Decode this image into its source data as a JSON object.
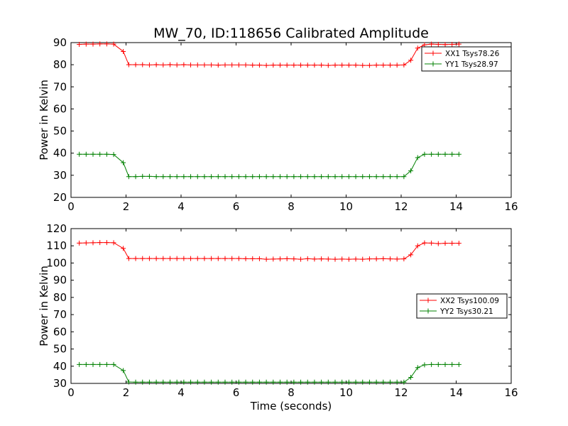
{
  "figure": {
    "title": "MW_70, ID:118656 Calibrated Amplitude"
  },
  "chart_data": [
    {
      "type": "line",
      "title": "MW_70, ID:118656 Calibrated Amplitude",
      "xlabel": "",
      "ylabel": "Power in Kelvin",
      "xlim": [
        0,
        16
      ],
      "ylim": [
        20,
        90
      ],
      "xticks": [
        0,
        2,
        4,
        6,
        8,
        10,
        12,
        14,
        16
      ],
      "yticks": [
        20,
        30,
        40,
        50,
        60,
        70,
        80,
        90
      ],
      "grid": false,
      "legend_position": "top-right",
      "x": [
        0.3,
        0.55,
        0.8,
        1.05,
        1.3,
        1.55,
        1.9,
        2.1,
        2.35,
        2.6,
        2.85,
        3.1,
        3.35,
        3.6,
        3.85,
        4.1,
        4.35,
        4.6,
        4.85,
        5.1,
        5.35,
        5.6,
        5.85,
        6.1,
        6.35,
        6.6,
        6.85,
        7.1,
        7.35,
        7.6,
        7.85,
        8.1,
        8.35,
        8.6,
        8.85,
        9.1,
        9.35,
        9.6,
        9.85,
        10.1,
        10.35,
        10.6,
        10.85,
        11.1,
        11.35,
        11.6,
        11.85,
        12.1,
        12.35,
        12.6,
        12.85,
        13.1,
        13.35,
        13.6,
        13.85,
        14.1
      ],
      "series": [
        {
          "name": "XX1 Tsys78.26",
          "color": "#ff0000",
          "values": [
            89.2,
            89.3,
            89.3,
            89.4,
            89.4,
            89.3,
            86.0,
            80.0,
            80.0,
            80.0,
            79.9,
            80.0,
            79.9,
            80.0,
            79.9,
            80.0,
            79.9,
            79.9,
            79.9,
            79.9,
            79.8,
            79.9,
            79.9,
            79.9,
            79.9,
            79.8,
            79.8,
            79.7,
            79.8,
            79.8,
            79.8,
            79.8,
            79.8,
            79.8,
            79.8,
            79.8,
            79.7,
            79.8,
            79.8,
            79.8,
            79.8,
            79.7,
            79.7,
            79.8,
            79.8,
            79.8,
            79.8,
            79.9,
            82.0,
            87.5,
            89.0,
            89.3,
            89.2,
            89.1,
            89.2,
            89.3
          ]
        },
        {
          "name": "YY1 Tsys28.97",
          "color": "#008000",
          "values": [
            39.5,
            39.5,
            39.5,
            39.5,
            39.5,
            39.4,
            35.7,
            29.4,
            29.4,
            29.5,
            29.5,
            29.4,
            29.4,
            29.4,
            29.4,
            29.4,
            29.4,
            29.4,
            29.4,
            29.4,
            29.4,
            29.4,
            29.4,
            29.4,
            29.4,
            29.4,
            29.4,
            29.4,
            29.4,
            29.4,
            29.4,
            29.4,
            29.4,
            29.4,
            29.4,
            29.4,
            29.4,
            29.4,
            29.4,
            29.4,
            29.4,
            29.4,
            29.4,
            29.4,
            29.4,
            29.4,
            29.4,
            29.4,
            32.0,
            38.0,
            39.5,
            39.5,
            39.5,
            39.5,
            39.5,
            39.5
          ]
        }
      ]
    },
    {
      "type": "line",
      "title": "",
      "xlabel": "Time (seconds)",
      "ylabel": "Power in Kelvin",
      "xlim": [
        0,
        16
      ],
      "ylim": [
        30,
        120
      ],
      "xticks": [
        0,
        2,
        4,
        6,
        8,
        10,
        12,
        14,
        16
      ],
      "yticks": [
        30,
        40,
        50,
        60,
        70,
        80,
        90,
        100,
        110,
        120
      ],
      "grid": false,
      "legend_position": "center-right",
      "x": [
        0.3,
        0.55,
        0.8,
        1.05,
        1.3,
        1.55,
        1.9,
        2.1,
        2.35,
        2.6,
        2.85,
        3.1,
        3.35,
        3.6,
        3.85,
        4.1,
        4.35,
        4.6,
        4.85,
        5.1,
        5.35,
        5.6,
        5.85,
        6.1,
        6.35,
        6.6,
        6.85,
        7.1,
        7.35,
        7.6,
        7.85,
        8.1,
        8.35,
        8.6,
        8.85,
        9.1,
        9.35,
        9.6,
        9.85,
        10.1,
        10.35,
        10.6,
        10.85,
        11.1,
        11.35,
        11.6,
        11.85,
        12.1,
        12.35,
        12.6,
        12.85,
        13.1,
        13.35,
        13.6,
        13.85,
        14.1
      ],
      "series": [
        {
          "name": "XX2 Tsys100.09",
          "color": "#ff0000",
          "values": [
            111.6,
            111.7,
            111.8,
            111.9,
            111.9,
            111.8,
            108.5,
            102.6,
            102.6,
            102.6,
            102.6,
            102.6,
            102.6,
            102.6,
            102.6,
            102.6,
            102.6,
            102.6,
            102.6,
            102.6,
            102.6,
            102.6,
            102.6,
            102.6,
            102.5,
            102.5,
            102.5,
            102.2,
            102.3,
            102.4,
            102.5,
            102.4,
            102.2,
            102.5,
            102.3,
            102.4,
            102.3,
            102.2,
            102.3,
            102.2,
            102.3,
            102.2,
            102.4,
            102.4,
            102.5,
            102.4,
            102.3,
            102.4,
            104.8,
            110.0,
            111.7,
            111.6,
            111.3,
            111.5,
            111.5,
            111.5
          ]
        },
        {
          "name": "YY2 Tsys30.21",
          "color": "#008000",
          "values": [
            41.0,
            41.0,
            41.0,
            41.0,
            41.0,
            41.0,
            37.5,
            30.8,
            30.7,
            30.7,
            30.7,
            30.7,
            30.7,
            30.7,
            30.7,
            30.7,
            30.7,
            30.7,
            30.7,
            30.7,
            30.7,
            30.7,
            30.7,
            30.7,
            30.7,
            30.7,
            30.7,
            30.7,
            30.7,
            30.7,
            30.7,
            30.7,
            30.7,
            30.7,
            30.7,
            30.7,
            30.7,
            30.7,
            30.7,
            30.7,
            30.7,
            30.7,
            30.7,
            30.7,
            30.7,
            30.7,
            30.7,
            30.7,
            33.5,
            39.2,
            40.8,
            41.0,
            41.0,
            41.0,
            41.0,
            41.0
          ]
        }
      ]
    }
  ]
}
